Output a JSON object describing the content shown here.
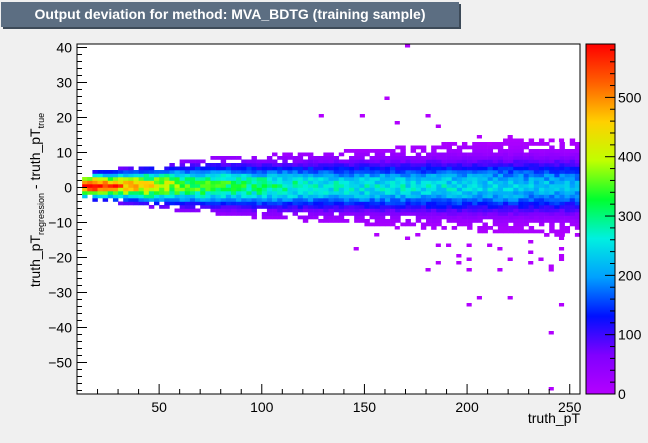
{
  "chart_data": {
    "type": "heatmap",
    "title": "Output deviation for method: MVA_BDTG (training sample)",
    "xlabel": "truth_pT",
    "ylabel": {
      "main": "truth_pT",
      "sub1": "regression",
      "mid": " - truth_pT",
      "sub2": "true"
    },
    "xlim": [
      10,
      255
    ],
    "ylim": [
      -59,
      41
    ],
    "xticks": [
      50,
      100,
      150,
      200,
      250
    ],
    "yticks": [
      40,
      30,
      20,
      10,
      0,
      -10,
      -20,
      -30,
      -40,
      -50
    ],
    "zlim": [
      0,
      590
    ],
    "zticks": [
      0,
      100,
      200,
      300,
      400,
      500
    ],
    "colormap": [
      "#b400ff",
      "#8000ff",
      "#0010ff",
      "#00a0ff",
      "#00f0e0",
      "#00ff30",
      "#c0ff00",
      "#ffd000",
      "#ff6000",
      "#ff0000"
    ],
    "core_band": {
      "x": [
        12,
        20,
        30,
        40,
        50,
        60,
        80,
        100,
        130,
        160,
        200,
        240,
        255
      ],
      "center": [
        0.5,
        0.5,
        0.5,
        0.5,
        0.5,
        0.5,
        0.5,
        0.3,
        0.3,
        0.3,
        0.3,
        0.3,
        0.3
      ],
      "peak": [
        590,
        560,
        460,
        430,
        390,
        340,
        310,
        290,
        250,
        240,
        230,
        210,
        200
      ],
      "width": [
        2.0,
        2.2,
        2.5,
        2.8,
        3.2,
        3.5,
        3.8,
        4.0,
        4.3,
        4.5,
        4.8,
        5.0,
        5.0
      ]
    },
    "outliers": [
      [
        171,
        40
      ],
      [
        161,
        25
      ],
      [
        129,
        20
      ],
      [
        149,
        20
      ],
      [
        181,
        20
      ],
      [
        166,
        18
      ],
      [
        186,
        17
      ],
      [
        206,
        14
      ],
      [
        221,
        14
      ],
      [
        241,
        13
      ],
      [
        246,
        13
      ],
      [
        211,
        12
      ],
      [
        146,
        -18
      ],
      [
        176,
        -14
      ],
      [
        191,
        -17
      ],
      [
        196,
        -20
      ],
      [
        211,
        -17
      ],
      [
        216,
        -18
      ],
      [
        221,
        -21
      ],
      [
        231,
        -19
      ],
      [
        236,
        -21
      ],
      [
        241,
        -23
      ],
      [
        171,
        -15
      ],
      [
        201,
        -24
      ],
      [
        186,
        -22
      ],
      [
        181,
        -24
      ],
      [
        166,
        -12
      ],
      [
        156,
        -14
      ],
      [
        186,
        -17
      ],
      [
        201,
        -17
      ],
      [
        231,
        -22
      ],
      [
        246,
        -20
      ],
      [
        201,
        -24
      ],
      [
        216,
        -24
      ],
      [
        241,
        -24
      ],
      [
        246,
        -21
      ],
      [
        201,
        -21
      ],
      [
        196,
        -22
      ],
      [
        246,
        -18
      ],
      [
        246,
        -15
      ],
      [
        231,
        -16
      ],
      [
        206,
        -32
      ],
      [
        221,
        -32
      ],
      [
        201,
        -34
      ],
      [
        246,
        -34
      ],
      [
        241,
        -42
      ],
      [
        241,
        -58
      ]
    ]
  }
}
